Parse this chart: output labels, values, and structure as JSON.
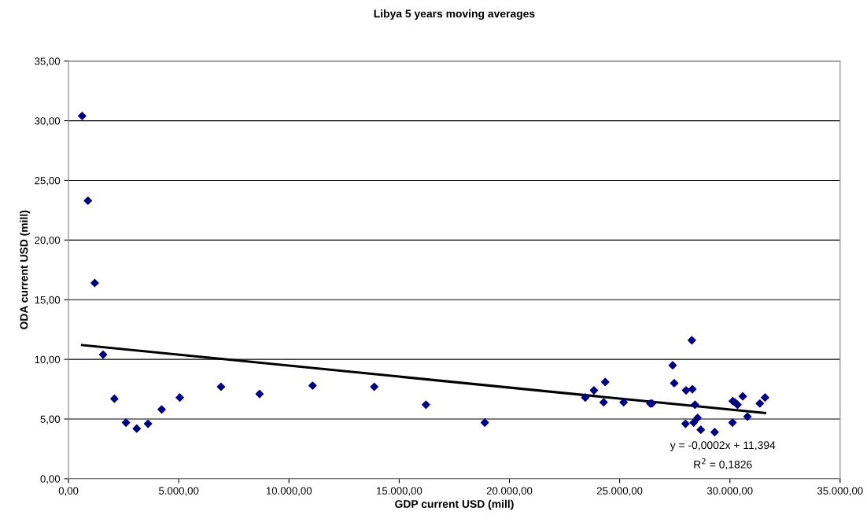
{
  "chart_data": {
    "type": "scatter",
    "title": "Libya 5 years moving averages",
    "xlabel": "GDP current USD (mill)",
    "ylabel": "ODA current USD (mill)",
    "series": [
      {
        "color": "#000080",
        "marker": "diamond",
        "x": [
          618,
          881,
          1190,
          1571,
          2083,
          2607,
          3095,
          3607,
          4226,
          5048,
          6917,
          8667,
          11071,
          13869,
          16214,
          18881,
          23440,
          23833,
          24274,
          24345,
          25179,
          26393,
          26464,
          27405,
          27476,
          27988,
          28012,
          28274,
          28298,
          28357,
          28417,
          28536,
          28679,
          29310,
          30119,
          30131,
          30226,
          30345,
          30583,
          30798,
          31357,
          31595
        ],
        "values": [
          30.4,
          23.3,
          16.4,
          10.4,
          6.7,
          4.7,
          4.2,
          4.6,
          5.8,
          6.8,
          7.7,
          7.1,
          7.8,
          7.7,
          6.2,
          4.7,
          6.8,
          7.4,
          6.4,
          8.1,
          6.4,
          6.3,
          6.3,
          9.5,
          8.0,
          4.6,
          7.4,
          11.6,
          7.5,
          4.7,
          6.2,
          5.1,
          4.1,
          3.9,
          4.7,
          6.5,
          6.4,
          6.2,
          6.9,
          5.2,
          6.3,
          6.8
        ]
      },
      {
        "type": "line",
        "color": "#000000",
        "marker": "none",
        "line_style": "solid",
        "x": [
          618,
          31595
        ],
        "values": [
          11.2,
          5.5
        ]
      }
    ],
    "xlim": [
      0,
      35000
    ],
    "ylim": [
      0,
      35
    ],
    "xticks": [
      {
        "value": 0,
        "label": "0,00"
      },
      {
        "value": 5000,
        "label": "5.000,00"
      },
      {
        "value": 10000,
        "label": "10.000,00"
      },
      {
        "value": 15000,
        "label": "15.000,00"
      },
      {
        "value": 20000,
        "label": "20.000,00"
      },
      {
        "value": 25000,
        "label": "25.000,00"
      },
      {
        "value": 30000,
        "label": "30.000,00"
      },
      {
        "value": 35000,
        "label": "35.000,00"
      }
    ],
    "yticks": [
      {
        "value": 0,
        "label": "0,00"
      },
      {
        "value": 5,
        "label": "5,00"
      },
      {
        "value": 10,
        "label": "10,00"
      },
      {
        "value": 15,
        "label": "15,00"
      },
      {
        "value": 20,
        "label": "20,00"
      },
      {
        "value": 25,
        "label": "25,00"
      },
      {
        "value": 30,
        "label": "30,00"
      },
      {
        "value": 35,
        "label": "35,00"
      }
    ],
    "grid": "y",
    "legend": false,
    "annotations": [
      "y = -0,0002x + 11,394",
      "R$^{2}$ = 0,1826"
    ]
  }
}
